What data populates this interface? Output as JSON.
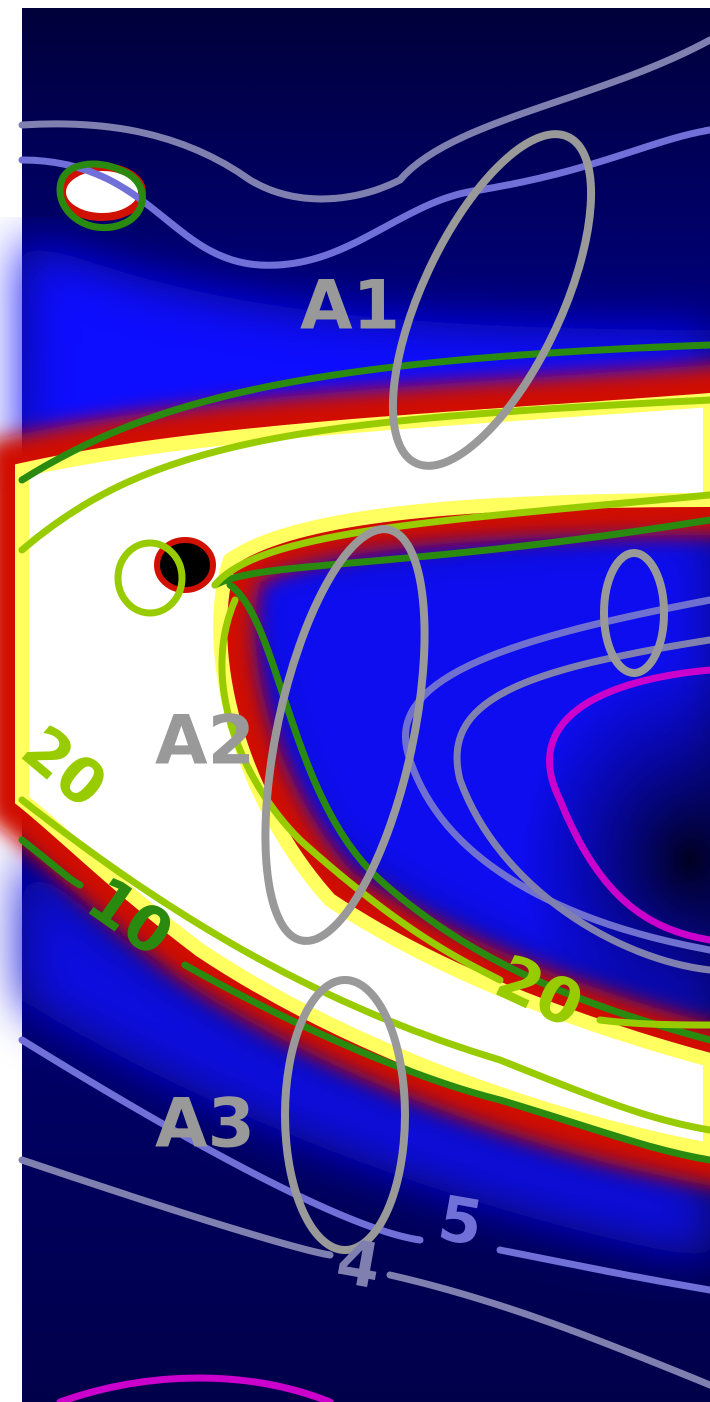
{
  "region_labels": [
    "A1",
    "A2",
    "A3"
  ],
  "contour_labels": [
    20,
    10,
    20,
    5,
    4
  ]
}
